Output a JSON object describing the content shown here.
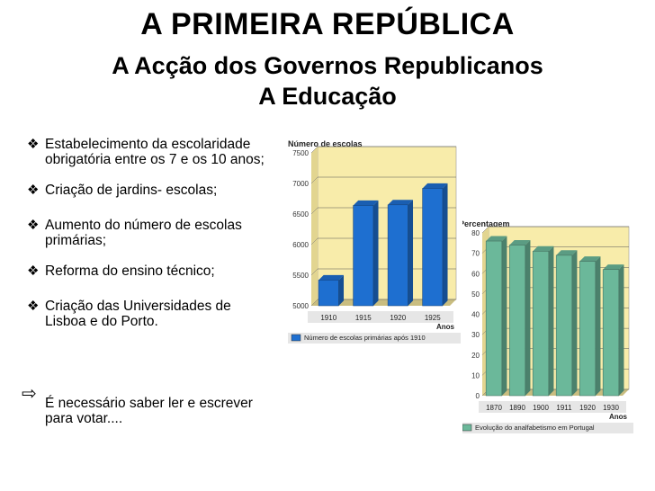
{
  "slide": {
    "title": "A PRIMEIRA REPÚBLICA",
    "subtitle": "A Acção dos Governos Republicanos",
    "topic": "A Educação"
  },
  "bullets": [
    "Estabelecimento da escolaridade obrigatória entre os 7 e os 10 anos;",
    "Criação de jardins- escolas;",
    "Aumento do número de escolas primárias;",
    "Reforma do ensino técnico;",
    "Criação das Universidades de Lisboa e do Porto."
  ],
  "note": "É necessário saber ler e escrever para votar....",
  "icons": {
    "bullet": "diamond-bullet-icon",
    "note": "arrow-right-icon"
  },
  "chart_data": [
    {
      "type": "bar",
      "ylabel": "Número de escolas",
      "xlabel": "Anos",
      "categories": [
        "1910",
        "1915",
        "1920",
        "1925"
      ],
      "values": [
        5420,
        6640,
        6650,
        6920
      ],
      "yticks": [
        5000,
        5500,
        6000,
        6500,
        7000,
        7500
      ],
      "ylim": [
        5000,
        7500
      ],
      "legend": "Número de escolas primárias após 1910",
      "color": "#1e6fd0",
      "background": "#f8ecaa"
    },
    {
      "type": "bar",
      "ylabel": "Percentagem",
      "xlabel": "Anos",
      "categories": [
        "1870",
        "1890",
        "1900",
        "1911",
        "1920",
        "1930"
      ],
      "values": [
        76,
        74,
        71,
        69,
        66,
        62
      ],
      "yticks": [
        0,
        10,
        20,
        30,
        40,
        50,
        60,
        70,
        80
      ],
      "ylim": [
        0,
        80
      ],
      "legend": "Evolução do analfabetismo em Portugal",
      "color": "#6bb89a",
      "background": "#f8ecaa"
    }
  ]
}
